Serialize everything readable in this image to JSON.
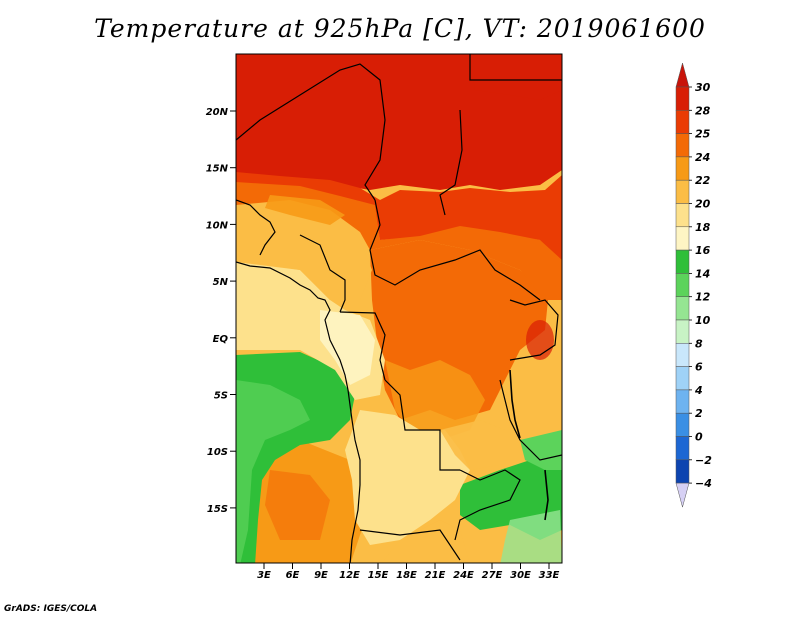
{
  "title": "Temperature at 925hPa [C], VT: 2019061600",
  "map": {
    "variable": "Temperature at 925hPa",
    "units": "C",
    "valid_time": "2019061600",
    "lat_range": [
      -20,
      25
    ],
    "lon_range": [
      0,
      35
    ],
    "lat_ticks": [
      {
        "value": 20,
        "label": "20N"
      },
      {
        "value": 15,
        "label": "15N"
      },
      {
        "value": 10,
        "label": "10N"
      },
      {
        "value": 5,
        "label": "5N"
      },
      {
        "value": 0,
        "label": "EQ"
      },
      {
        "value": -5,
        "label": "5S"
      },
      {
        "value": -10,
        "label": "10S"
      },
      {
        "value": -15,
        "label": "15S"
      }
    ],
    "lon_ticks": [
      {
        "value": 3,
        "label": "3E"
      },
      {
        "value": 6,
        "label": "6E"
      },
      {
        "value": 9,
        "label": "9E"
      },
      {
        "value": 12,
        "label": "12E"
      },
      {
        "value": 15,
        "label": "15E"
      },
      {
        "value": 18,
        "label": "18E"
      },
      {
        "value": 21,
        "label": "21E"
      },
      {
        "value": 24,
        "label": "24E"
      },
      {
        "value": 27,
        "label": "27E"
      },
      {
        "value": 30,
        "label": "30E"
      },
      {
        "value": 33,
        "label": "33E"
      }
    ]
  },
  "colorbar": {
    "levels": [
      {
        "value": "30",
        "color": "#d81e05"
      },
      {
        "value": "28",
        "color": "#ea3c04"
      },
      {
        "value": "25",
        "color": "#f36a06"
      },
      {
        "value": "24",
        "color": "#f79a16"
      },
      {
        "value": "22",
        "color": "#fbbd45"
      },
      {
        "value": "20",
        "color": "#fde18c"
      },
      {
        "value": "18",
        "color": "#fef5c4"
      },
      {
        "value": "16",
        "color": "#2fbf39"
      },
      {
        "value": "14",
        "color": "#5cd35b"
      },
      {
        "value": "12",
        "color": "#95e592"
      },
      {
        "value": "10",
        "color": "#c8f3c5"
      },
      {
        "value": "8",
        "color": "#c9e7fb"
      },
      {
        "value": "6",
        "color": "#9fd2f7"
      },
      {
        "value": "4",
        "color": "#6eb3f0"
      },
      {
        "value": "2",
        "color": "#3a8fe4"
      },
      {
        "value": "0",
        "color": "#1d67d3"
      },
      {
        "value": "−2",
        "color": "#0d44b0"
      },
      {
        "value": "−4",
        "color": "#082587"
      }
    ],
    "top_cap_color": "#c8140a",
    "bottom_cap_color": "#d6d0f4"
  },
  "credit": "GrADS: IGES/COLA"
}
